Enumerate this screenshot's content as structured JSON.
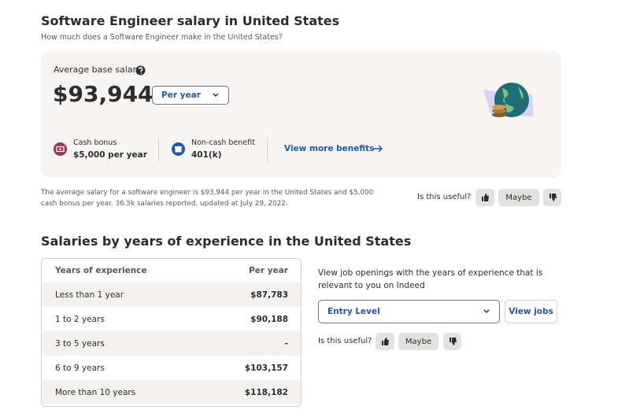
{
  "header": {
    "title": "Software Engineer salary in United States",
    "subtitle": "How much does a Software Engineer make in the United States?"
  },
  "summary": {
    "label": "Average base salary",
    "amount": "$93,944",
    "period": "Per year",
    "cash_bonus": {
      "label": "Cash bonus",
      "value": "$5,000 per year"
    },
    "non_cash": {
      "label": "Non-cash benefit",
      "value": "401(k)"
    },
    "more_link": "View more benefits"
  },
  "note": "The average salary for a software engineer is $93,944 per year in the United States and $5,000 cash bonus per year. 36.5k salaries reported, updated at July 29, 2022.",
  "feedback": {
    "question": "Is this useful?",
    "maybe": "Maybe"
  },
  "experience": {
    "title": "Salaries by years of experience in the United States",
    "table": {
      "headers": [
        "Years of experience",
        "Per year"
      ],
      "rows": [
        [
          "Less than 1 year",
          "$87,783"
        ],
        [
          "1 to 2 years",
          "$90,188"
        ],
        [
          "3 to 5 years",
          "-"
        ],
        [
          "6 to 9 years",
          "$103,157"
        ],
        [
          "More than 10 years",
          "$118,182"
        ]
      ]
    },
    "side": {
      "text": "View job openings with the years of experience that is relevant to you on Indeed",
      "select": "Entry Level",
      "button": "View jobs",
      "question": "Is this useful?",
      "maybe": "Maybe"
    }
  }
}
